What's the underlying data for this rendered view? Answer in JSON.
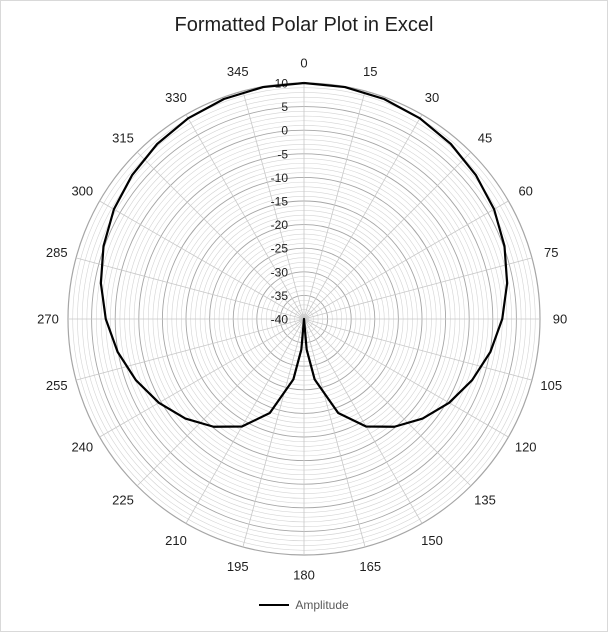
{
  "chart_data": {
    "type": "polar-line",
    "title": "Formatted Polar Plot in Excel",
    "angle_labels": [
      "0",
      "15",
      "30",
      "45",
      "60",
      "75",
      "90",
      "105",
      "120",
      "135",
      "150",
      "165",
      "180",
      "195",
      "210",
      "225",
      "240",
      "255",
      "270",
      "285",
      "300",
      "315",
      "330",
      "345"
    ],
    "radial_labels": [
      "-40",
      "-35",
      "-30",
      "-25",
      "-20",
      "-15",
      "-10",
      "-5",
      "0",
      "5",
      "10"
    ],
    "r_range": [
      -40,
      10
    ],
    "minor_ring_step": 1,
    "grid": true,
    "legend_position": "bottom",
    "series": [
      {
        "name": "Amplitude",
        "color": "#000000",
        "angles": [
          0,
          10,
          20,
          30,
          40,
          50,
          60,
          70,
          80,
          90,
          100,
          110,
          120,
          130,
          140,
          150,
          160,
          170,
          175,
          180,
          185,
          190,
          200,
          210,
          220,
          230,
          240,
          250,
          260,
          270,
          280,
          290,
          300,
          310,
          320,
          330,
          340,
          350,
          360
        ],
        "values": [
          10,
          9.9,
          9.6,
          9.1,
          8.4,
          7.5,
          6.5,
          5.2,
          3.7,
          2,
          0.1,
          -2.1,
          -4.5,
          -7.2,
          -10.2,
          -13.7,
          -18.8,
          -27,
          -33.5,
          -40,
          -33.5,
          -27,
          -18.8,
          -13.7,
          -10.2,
          -7.2,
          -4.5,
          -2.1,
          0.1,
          2,
          3.7,
          5.2,
          6.5,
          7.5,
          8.4,
          9.1,
          9.6,
          9.9,
          10
        ]
      }
    ]
  }
}
